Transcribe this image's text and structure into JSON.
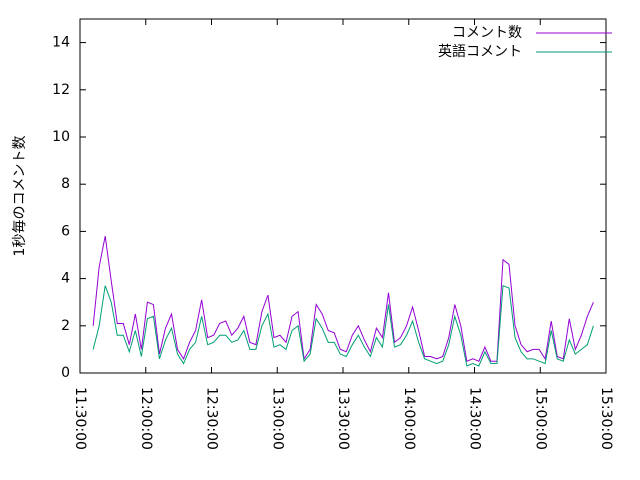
{
  "chart_data": {
    "type": "line",
    "ylabel": "1秒毎のコメント数",
    "x": [
      "11:36:00",
      "11:38:45",
      "11:41:30",
      "11:44:15",
      "11:47:00",
      "11:49:45",
      "11:52:30",
      "11:55:15",
      "11:58:00",
      "12:00:45",
      "12:03:30",
      "12:06:15",
      "12:09:00",
      "12:11:45",
      "12:14:30",
      "12:17:15",
      "12:20:00",
      "12:22:45",
      "12:25:30",
      "12:28:15",
      "12:31:00",
      "12:33:45",
      "12:36:30",
      "12:39:15",
      "12:42:00",
      "12:44:45",
      "12:47:30",
      "12:50:15",
      "12:53:00",
      "12:55:45",
      "12:58:30",
      "13:01:15",
      "13:04:00",
      "13:06:45",
      "13:09:30",
      "13:12:15",
      "13:15:00",
      "13:17:45",
      "13:20:30",
      "13:23:15",
      "13:26:00",
      "13:28:45",
      "13:31:30",
      "13:34:15",
      "13:37:00",
      "13:39:45",
      "13:42:30",
      "13:45:15",
      "13:48:00",
      "13:50:45",
      "13:53:30",
      "13:56:15",
      "13:59:00",
      "14:01:45",
      "14:04:30",
      "14:07:15",
      "14:10:00",
      "14:12:45",
      "14:15:30",
      "14:18:15",
      "14:21:00",
      "14:23:45",
      "14:26:30",
      "14:29:15",
      "14:32:00",
      "14:34:45",
      "14:37:30",
      "14:40:15",
      "14:43:00",
      "14:45:45",
      "14:48:30",
      "14:51:15",
      "14:54:00",
      "14:56:45",
      "14:59:30",
      "15:02:15",
      "15:05:00",
      "15:07:45",
      "15:10:30",
      "15:13:15",
      "15:16:00",
      "15:18:45",
      "15:21:30",
      "15:24:15"
    ],
    "series": [
      {
        "name": "コメント数",
        "color": "#9400d3",
        "values": [
          2.0,
          4.5,
          5.8,
          3.9,
          2.1,
          2.1,
          1.2,
          2.5,
          1.0,
          3.0,
          2.9,
          0.8,
          1.9,
          2.5,
          1.0,
          0.6,
          1.3,
          1.8,
          3.1,
          1.5,
          1.6,
          2.1,
          2.2,
          1.6,
          1.9,
          2.4,
          1.3,
          1.2,
          2.6,
          3.3,
          1.5,
          1.6,
          1.3,
          2.4,
          2.6,
          0.6,
          1.0,
          2.9,
          2.5,
          1.8,
          1.7,
          1.0,
          0.9,
          1.6,
          2.0,
          1.4,
          0.9,
          1.9,
          1.5,
          3.4,
          1.3,
          1.5,
          2.0,
          2.8,
          1.8,
          0.7,
          0.7,
          0.6,
          0.7,
          1.5,
          2.9,
          2.0,
          0.5,
          0.6,
          0.5,
          1.1,
          0.5,
          0.5,
          4.8,
          4.6,
          2.0,
          1.2,
          0.9,
          1.0,
          1.0,
          0.6,
          2.2,
          0.7,
          0.6,
          2.3,
          1.0,
          1.6,
          2.4,
          3.0
        ]
      },
      {
        "name": "英語コメント",
        "color": "#009e73",
        "values": [
          1.0,
          2.0,
          3.7,
          3.0,
          1.6,
          1.6,
          0.9,
          1.8,
          0.7,
          2.3,
          2.4,
          0.6,
          1.4,
          1.9,
          0.8,
          0.4,
          1.0,
          1.3,
          2.4,
          1.2,
          1.3,
          1.6,
          1.6,
          1.3,
          1.4,
          1.8,
          1.0,
          1.0,
          2.0,
          2.5,
          1.1,
          1.2,
          1.0,
          1.8,
          2.0,
          0.5,
          0.8,
          2.3,
          1.9,
          1.3,
          1.3,
          0.8,
          0.7,
          1.2,
          1.6,
          1.1,
          0.7,
          1.5,
          1.1,
          2.9,
          1.1,
          1.2,
          1.6,
          2.2,
          1.3,
          0.6,
          0.5,
          0.4,
          0.5,
          1.2,
          2.4,
          1.6,
          0.3,
          0.4,
          0.3,
          0.9,
          0.4,
          0.4,
          3.7,
          3.6,
          1.5,
          0.9,
          0.6,
          0.6,
          0.5,
          0.4,
          1.8,
          0.6,
          0.5,
          1.4,
          0.8,
          1.0,
          1.2,
          2.0
        ]
      }
    ],
    "xlim": [
      "11:30:00",
      "15:30:00"
    ],
    "xticks": [
      "11:30:00",
      "12:00:00",
      "12:30:00",
      "13:00:00",
      "13:30:00",
      "14:00:00",
      "14:30:00",
      "15:00:00",
      "15:30:00"
    ],
    "ylim": [
      0,
      15
    ],
    "yticks": [
      0,
      2,
      4,
      6,
      8,
      10,
      12,
      14
    ],
    "grid": false,
    "legend": "top-right"
  }
}
